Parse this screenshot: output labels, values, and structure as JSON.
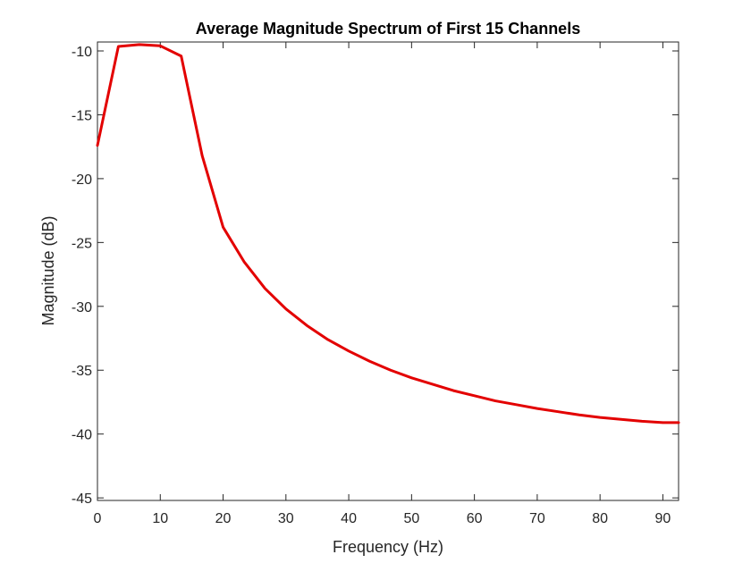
{
  "chart_data": {
    "type": "line",
    "title": "Average Magnitude Spectrum of First 15 Channels",
    "xlabel": "Frequency (Hz)",
    "ylabel": "Magnitude (dB)",
    "xlim": [
      0,
      92.5
    ],
    "ylim": [
      -45.2,
      -9.3
    ],
    "xticks": [
      0,
      10,
      20,
      30,
      40,
      50,
      60,
      70,
      80,
      90
    ],
    "yticks": [
      -10,
      -15,
      -20,
      -25,
      -30,
      -35,
      -40,
      -45
    ],
    "grid": false,
    "line_color": "#e30000",
    "series": [
      {
        "x": [
          0,
          3.33,
          6.67,
          10,
          13.33,
          16.67,
          20,
          23.33,
          26.67,
          30,
          33.33,
          36.67,
          40,
          43.33,
          46.67,
          50,
          53.33,
          56.67,
          60,
          63.33,
          66.67,
          70,
          73.33,
          76.67,
          80,
          83.33,
          86.67,
          90,
          92.5
        ],
        "y": [
          -17.4,
          -9.65,
          -9.5,
          -9.6,
          -10.4,
          -18.2,
          -23.8,
          -26.5,
          -28.6,
          -30.2,
          -31.5,
          -32.6,
          -33.5,
          -34.3,
          -35.0,
          -35.6,
          -36.1,
          -36.6,
          -37.0,
          -37.4,
          -37.7,
          -38.0,
          -38.25,
          -38.5,
          -38.7,
          -38.85,
          -39.0,
          -39.1,
          -39.1
        ]
      }
    ]
  }
}
